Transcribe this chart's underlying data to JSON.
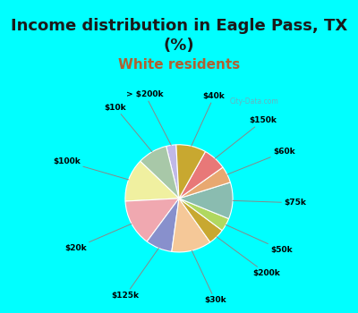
{
  "title": "Income distribution in Eagle Pass, TX\n(%)",
  "subtitle": "White residents",
  "title_fontsize": 13,
  "subtitle_fontsize": 11,
  "background_color": "#00FFFF",
  "chart_bg_color": "#e0f5ee",
  "watermark": "City-Data.com",
  "labels": [
    "> $200k",
    "$10k",
    "$100k",
    "$20k",
    "$125k",
    "$30k",
    "$200k",
    "$50k",
    "$75k",
    "$60k",
    "$150k",
    "$40k"
  ],
  "values": [
    3,
    9,
    13,
    14,
    8,
    12,
    5,
    4,
    11,
    5,
    7,
    9
  ],
  "colors": [
    "#c0b8e8",
    "#a8c8a8",
    "#f0f0a0",
    "#f0a8b0",
    "#8890cc",
    "#f5c898",
    "#c8a830",
    "#b0d860",
    "#8abcb0",
    "#e8a870",
    "#e87878",
    "#c8a830"
  ],
  "startangle": 93
}
